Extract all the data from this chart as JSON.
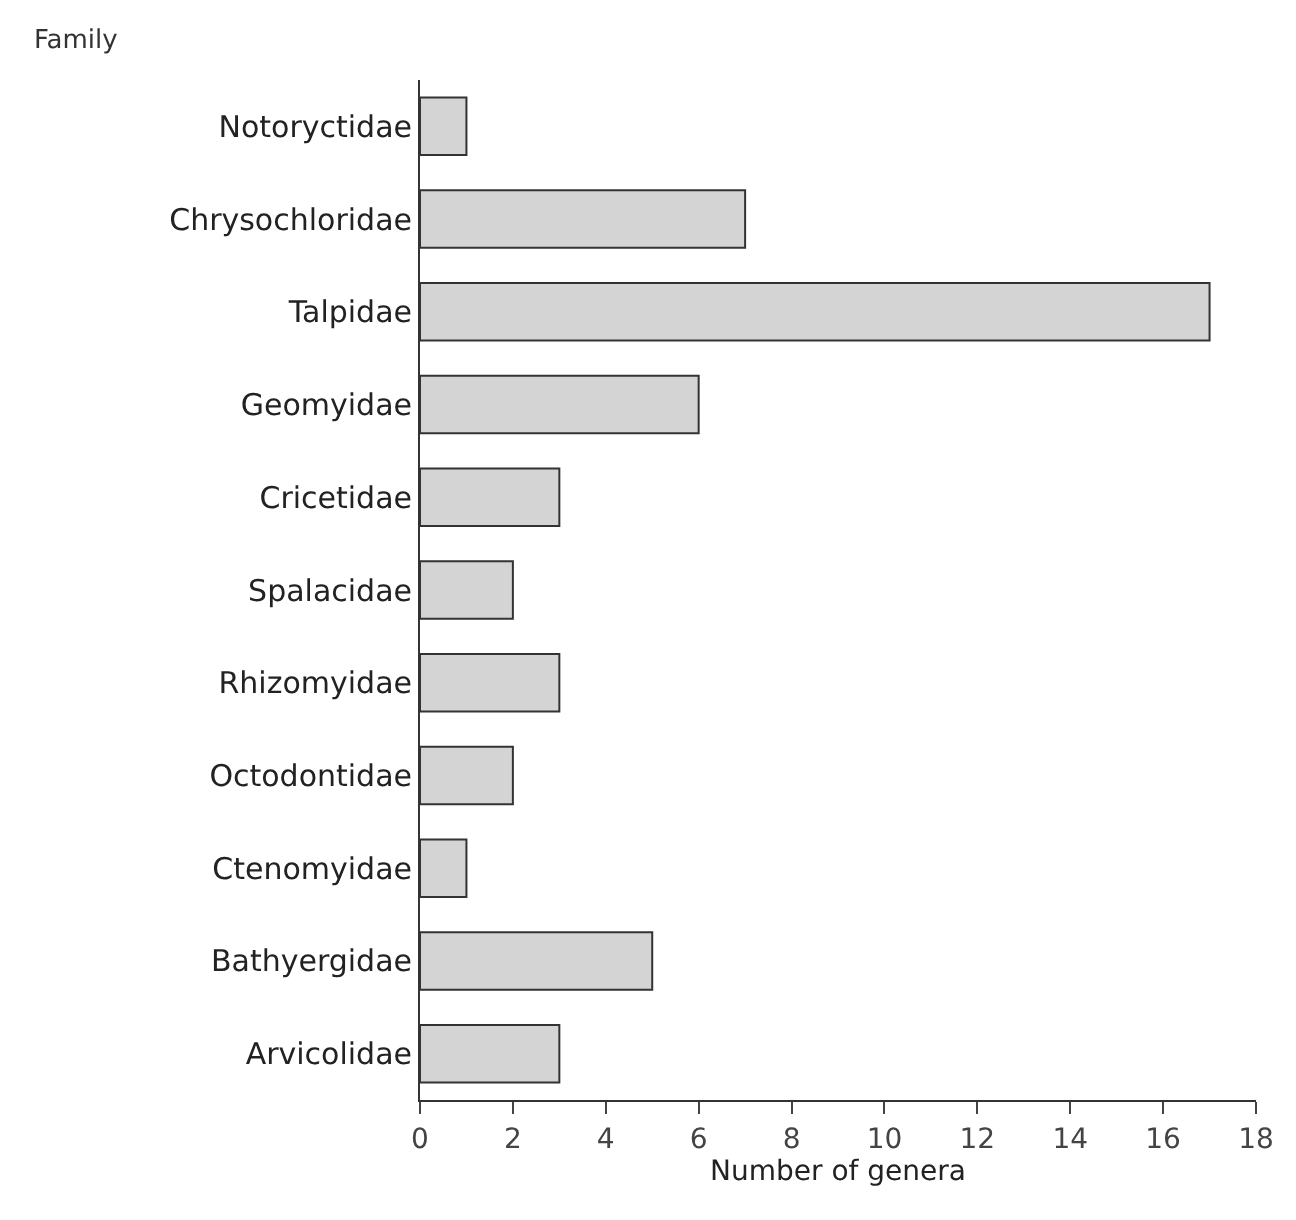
{
  "chart_data": {
    "type": "bar",
    "orientation": "horizontal",
    "ylabel": "Family",
    "xlabel": "Number of genera",
    "categories": [
      "Notoryctidae",
      "Chrysochloridae",
      "Talpidae",
      "Geomyidae",
      "Cricetidae",
      "Spalacidae",
      "Rhizomyidae",
      "Octodontidae",
      "Ctenomyidae",
      "Bathyergidae",
      "Arvicolidae"
    ],
    "values": [
      1,
      7,
      17,
      6,
      3,
      2,
      3,
      2,
      1,
      5,
      3
    ],
    "color": "#d4d4d4",
    "xlim": [
      0,
      18
    ],
    "xticks": [
      0,
      2,
      4,
      6,
      8,
      10,
      12,
      14,
      16,
      18
    ],
    "grid": false
  }
}
